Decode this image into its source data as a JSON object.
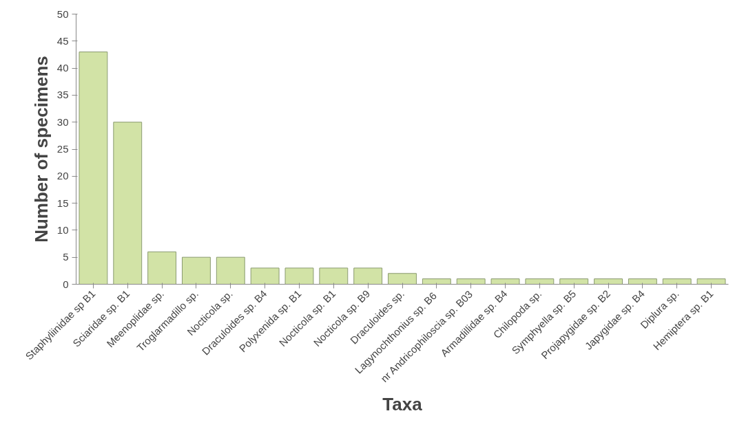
{
  "chart_data": {
    "type": "bar",
    "xlabel": "Taxa",
    "ylabel": "Number of specimens",
    "categories": [
      "Staphyliinidae sp B1",
      "Sciaridae sp. B1",
      "Meenoplidae sp.",
      "Troglarmadillo sp.",
      "Nocticola sp.",
      "Draculoides sp. B4",
      "Polyxenida sp. B1",
      "Nocticola sp. B1",
      "Nocticola sp. B9",
      "Draculoides sp.",
      "Lagynochthonius  sp. B6",
      "nr Andricophiloscia sp. B03",
      "Armadillidae sp. B4",
      "Chilopoda sp.",
      "Symphyella sp. B5",
      "Projapygidae sp. B2",
      "Japygidae sp. B4",
      "Diplura sp.",
      "Hemiptera sp. B1"
    ],
    "values": [
      43,
      30,
      6,
      5,
      5,
      3,
      3,
      3,
      3,
      2,
      1,
      1,
      1,
      1,
      1,
      1,
      1,
      1,
      1
    ],
    "color": "#d2e3a6",
    "ylim": [
      0,
      50
    ],
    "yticks": [
      0,
      5,
      10,
      15,
      20,
      25,
      30,
      35,
      40,
      45,
      50
    ],
    "grid": false
  }
}
